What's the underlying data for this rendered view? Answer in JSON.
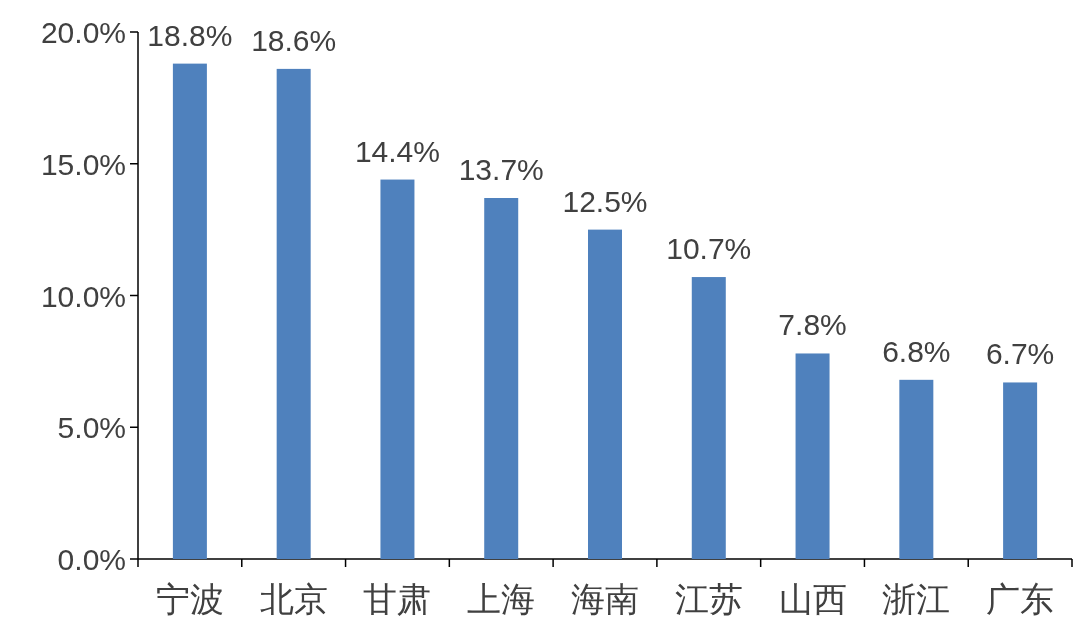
{
  "chart_data": {
    "type": "bar",
    "categories": [
      "宁波",
      "北京",
      "甘肃",
      "上海",
      "海南",
      "江苏",
      "山西",
      "浙江",
      "广东"
    ],
    "values": [
      18.8,
      18.6,
      14.4,
      13.7,
      12.5,
      10.7,
      7.8,
      6.8,
      6.7
    ],
    "value_labels": [
      "18.8%",
      "18.6%",
      "14.4%",
      "13.7%",
      "12.5%",
      "10.7%",
      "7.8%",
      "6.8%",
      "6.7%"
    ],
    "color": "#4f81bd",
    "ylim": [
      0,
      20
    ],
    "yticks": [
      {
        "value": 0,
        "label": "0.0%"
      },
      {
        "value": 5,
        "label": "5.0%"
      },
      {
        "value": 10,
        "label": "10.0%"
      },
      {
        "value": 15,
        "label": "15.0%"
      },
      {
        "value": 20,
        "label": "20.0%"
      }
    ],
    "grid": false
  }
}
